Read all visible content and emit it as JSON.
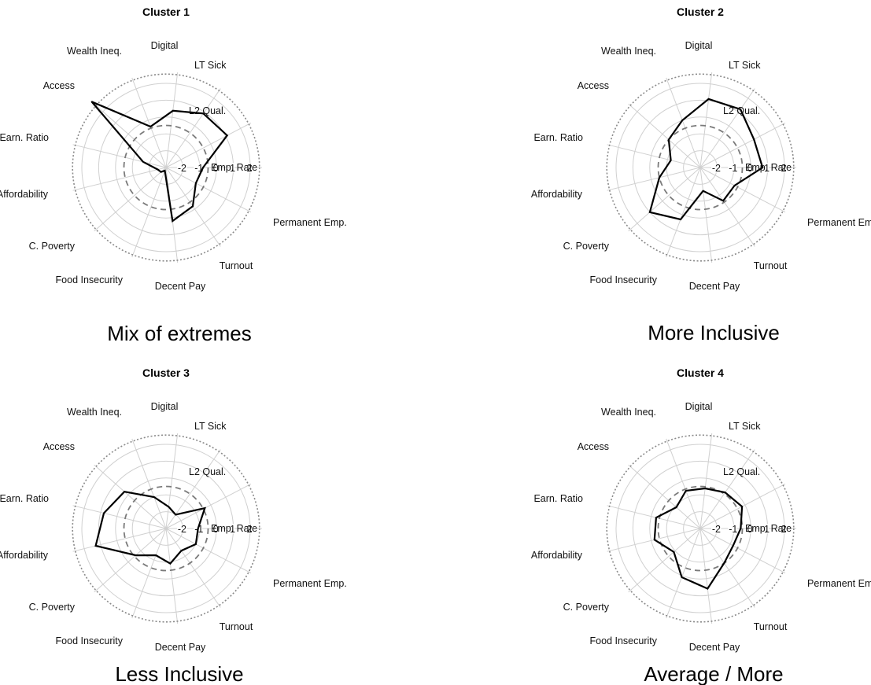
{
  "chart_data": [
    {
      "type": "radar",
      "title": "Cluster 1",
      "caption": "Mix of extremes",
      "axes": [
        "Emp. Rate",
        "L2 Qual.",
        "LT Sick",
        "Digital",
        "Wealth Ineq.",
        "Access",
        "Earn. Ratio",
        "Affordability",
        "C. Poverty",
        "Food Insecurity",
        "Decent Pay",
        "Turnout",
        "Permanent Emp."
      ],
      "ticks": [
        -2,
        -1,
        0,
        1,
        2
      ],
      "rlim": [
        -3,
        2.7
      ],
      "reference_series": [
        {
          "name": "",
          "value": -0.5,
          "style": "dashed"
        },
        {
          "name": "",
          "value": 2.55,
          "style": "dotted"
        }
      ],
      "series": [
        {
          "values": [
            -0.8,
            1.1,
            0.9,
            0.4,
            -0.4,
            2.9,
            -1.6,
            -2.5,
            -2.6,
            -2.8,
            0.2,
            -0.2,
            -1.0
          ]
        }
      ]
    },
    {
      "type": "radar",
      "title": "Cluster 2",
      "caption": "More Inclusive",
      "axes": [
        "Emp. Rate",
        "L2 Qual.",
        "LT Sick",
        "Digital",
        "Wealth Ineq.",
        "Access",
        "Earn. Ratio",
        "Affordability",
        "C. Poverty",
        "Food Insecurity",
        "Decent Pay",
        "Turnout",
        "Permanent Emp."
      ],
      "ticks": [
        -2,
        -1,
        0,
        1,
        2
      ],
      "rlim": [
        -3,
        2.7
      ],
      "reference_series": [
        {
          "name": "",
          "value": -0.5,
          "style": "dashed"
        },
        {
          "name": "",
          "value": 2.55,
          "style": "dotted"
        }
      ],
      "series": [
        {
          "values": [
            0.7,
            0.6,
            1.2,
            1.1,
            0.0,
            -0.5,
            -1.2,
            -0.5,
            1.0,
            0.3,
            -1.6,
            -0.6,
            -0.7
          ]
        }
      ]
    },
    {
      "type": "radar",
      "title": "Cluster 3",
      "caption": "Less Inclusive",
      "axes": [
        "Emp. Rate",
        "L2 Qual.",
        "LT Sick",
        "Digital",
        "Wealth Ineq.",
        "Access",
        "Earn. Ratio",
        "Affordability",
        "C. Poverty",
        "Food Insecurity",
        "Decent Pay",
        "Turnout",
        "Permanent Emp."
      ],
      "ticks": [
        -2,
        -1,
        0,
        1,
        2
      ],
      "rlim": [
        -3,
        2.7
      ],
      "reference_series": [
        {
          "name": "",
          "value": -0.5,
          "style": "dashed"
        },
        {
          "name": "",
          "value": 2.55,
          "style": "dotted"
        }
      ],
      "series": [
        {
          "values": [
            -1.1,
            -0.4,
            -2.0,
            -1.7,
            -1.0,
            0.3,
            0.8,
            1.3,
            -0.6,
            -1.3,
            -0.9,
            -1.4,
            -1.0
          ]
        }
      ]
    },
    {
      "type": "radar",
      "title": "Cluster 4",
      "caption": "Average / More",
      "axes": [
        "Emp. Rate",
        "L2 Qual.",
        "LT Sick",
        "Digital",
        "Wealth Ineq.",
        "Access",
        "Earn. Ratio",
        "Affordability",
        "C. Poverty",
        "Food Insecurity",
        "Decent Pay",
        "Turnout",
        "Permanent Emp."
      ],
      "ticks": [
        -2,
        -1,
        0,
        1,
        2
      ],
      "rlim": [
        -3,
        2.7
      ],
      "reference_series": [
        {
          "name": "",
          "value": -0.5,
          "style": "dashed"
        },
        {
          "name": "",
          "value": 2.55,
          "style": "dotted"
        }
      ],
      "series": [
        {
          "values": [
            -0.6,
            -0.2,
            -0.4,
            -0.6,
            -0.6,
            -1.1,
            -0.3,
            -0.2,
            -0.9,
            0.1,
            0.6,
            -0.5,
            -0.8
          ]
        }
      ]
    }
  ]
}
